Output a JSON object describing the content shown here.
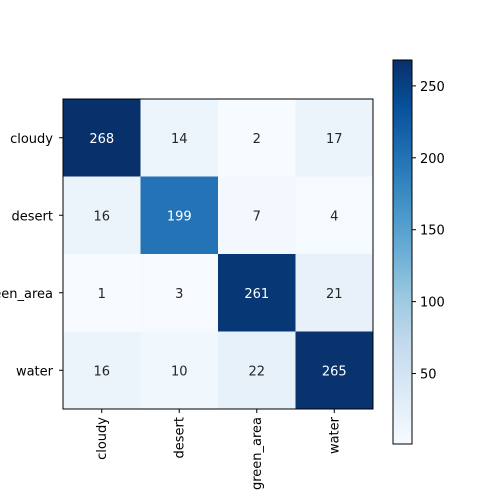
{
  "chart_data": {
    "type": "heatmap",
    "title": "",
    "xlabel": "",
    "ylabel": "",
    "x_categories": [
      "cloudy",
      "desert",
      "green_area",
      "water"
    ],
    "y_categories": [
      "cloudy",
      "desert",
      "green_area",
      "water"
    ],
    "values": [
      [
        268,
        14,
        2,
        17
      ],
      [
        16,
        199,
        7,
        4
      ],
      [
        1,
        3,
        261,
        21
      ],
      [
        16,
        10,
        22,
        265
      ]
    ],
    "colormap": "Blues",
    "colorbar": {
      "vmin": 1,
      "vmax": 268,
      "ticks": [
        50,
        100,
        150,
        200,
        250
      ]
    },
    "text_color_dark": "#262626",
    "text_color_light": "#ffffff"
  }
}
